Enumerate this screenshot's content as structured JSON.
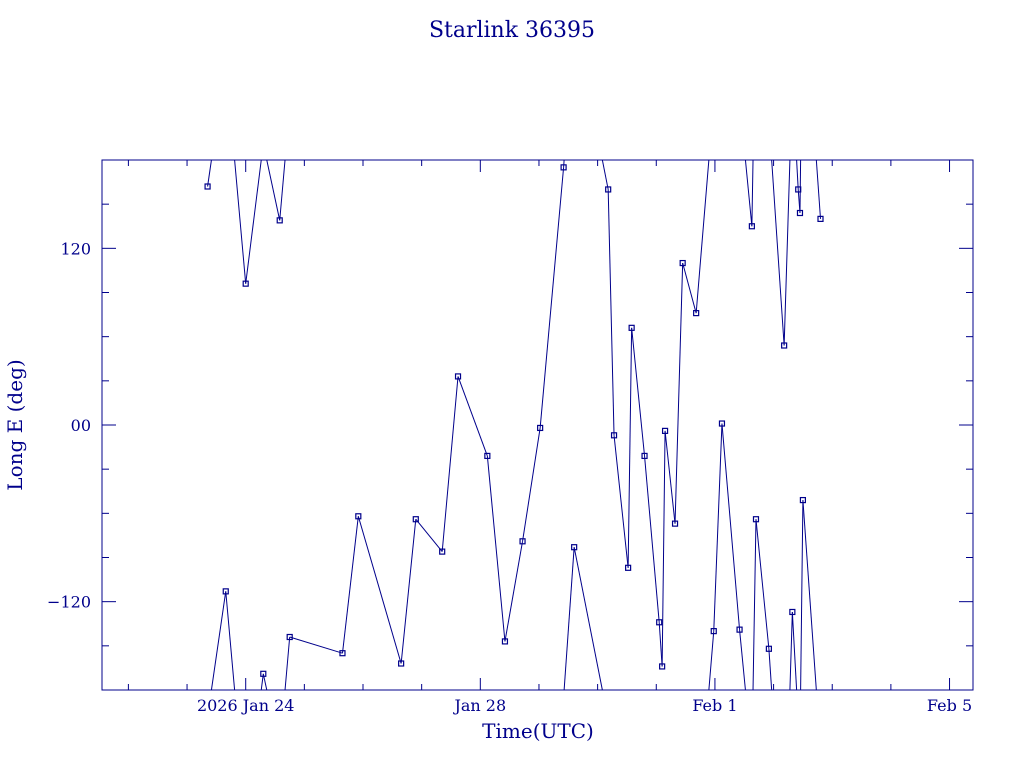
{
  "colors": {
    "ink": "#00008b",
    "background": "#ffffff"
  },
  "chart_data": {
    "type": "line",
    "title": "Starlink 36395",
    "xlabel": "Time(UTC)",
    "ylabel": "Long E (deg)",
    "x_unit": "days since 2026-01-23 00:00 UTC",
    "xlim": [
      -1.45,
      13.4
    ],
    "ylim": [
      -180,
      180
    ],
    "grid": false,
    "legend": "none",
    "x_ticks": [
      {
        "value": 1,
        "label": "2026 Jan 24"
      },
      {
        "value": 5,
        "label": "Jan 28"
      },
      {
        "value": 9,
        "label": "Feb  1"
      },
      {
        "value": 13,
        "label": "Feb  5"
      }
    ],
    "y_ticks": [
      {
        "value": 120,
        "label": "120"
      },
      {
        "value": 0,
        "label": "00"
      },
      {
        "value": -120,
        "label": "−120"
      }
    ],
    "series": [
      {
        "name": "",
        "points": [
          [
            0.35,
            162
          ],
          [
            0.66,
            -113
          ],
          [
            1.0,
            96
          ],
          [
            1.3,
            -169
          ],
          [
            1.58,
            139
          ],
          [
            1.75,
            -144
          ],
          [
            2.65,
            -155
          ],
          [
            2.92,
            -62
          ],
          [
            3.65,
            -162
          ],
          [
            3.9,
            -64
          ],
          [
            4.35,
            -86
          ],
          [
            4.62,
            33
          ],
          [
            5.12,
            -21
          ],
          [
            5.42,
            -147
          ],
          [
            5.72,
            -79
          ],
          [
            6.02,
            -2
          ],
          [
            6.42,
            175
          ],
          [
            6.6,
            -83
          ],
          [
            7.18,
            160
          ],
          [
            7.28,
            -7
          ],
          [
            7.52,
            -97
          ],
          [
            7.58,
            66
          ],
          [
            7.8,
            -21
          ],
          [
            8.05,
            -134
          ],
          [
            8.1,
            -164
          ],
          [
            8.15,
            -4
          ],
          [
            8.32,
            -67
          ],
          [
            8.45,
            110
          ],
          [
            8.68,
            76
          ],
          [
            8.98,
            -140
          ],
          [
            9.12,
            1
          ],
          [
            9.42,
            -139
          ],
          [
            9.63,
            135
          ],
          [
            9.7,
            -64
          ],
          [
            9.92,
            -152
          ],
          [
            10.18,
            54
          ],
          [
            10.32,
            -127
          ],
          [
            10.42,
            160
          ],
          [
            10.45,
            144
          ],
          [
            10.5,
            -51
          ],
          [
            10.8,
            140
          ]
        ]
      }
    ]
  }
}
